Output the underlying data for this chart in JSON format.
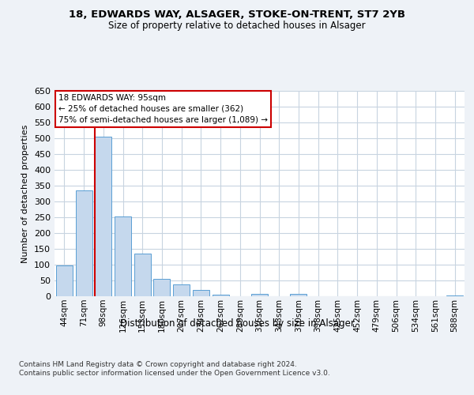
{
  "title_line1": "18, EDWARDS WAY, ALSAGER, STOKE-ON-TRENT, ST7 2YB",
  "title_line2": "Size of property relative to detached houses in Alsager",
  "xlabel": "Distribution of detached houses by size in Alsager",
  "ylabel": "Number of detached properties",
  "categories": [
    "44sqm",
    "71sqm",
    "98sqm",
    "126sqm",
    "153sqm",
    "180sqm",
    "207sqm",
    "234sqm",
    "262sqm",
    "289sqm",
    "316sqm",
    "343sqm",
    "370sqm",
    "398sqm",
    "425sqm",
    "452sqm",
    "479sqm",
    "506sqm",
    "534sqm",
    "561sqm",
    "588sqm"
  ],
  "values": [
    97,
    334,
    505,
    253,
    136,
    54,
    38,
    20,
    6,
    0,
    8,
    0,
    8,
    0,
    0,
    0,
    0,
    0,
    0,
    0,
    3
  ],
  "bar_color": "#c5d8ed",
  "bar_edge_color": "#5a9fd4",
  "vline_x_index": 2,
  "vline_color": "#cc0000",
  "ylim": [
    0,
    650
  ],
  "yticks": [
    0,
    50,
    100,
    150,
    200,
    250,
    300,
    350,
    400,
    450,
    500,
    550,
    600,
    650
  ],
  "annotation_text": "18 EDWARDS WAY: 95sqm\n← 25% of detached houses are smaller (362)\n75% of semi-detached houses are larger (1,089) →",
  "annotation_box_color": "#cc0000",
  "footer_text": "Contains HM Land Registry data © Crown copyright and database right 2024.\nContains public sector information licensed under the Open Government Licence v3.0.",
  "bg_color": "#eef2f7",
  "plot_bg_color": "#ffffff",
  "grid_color": "#c8d4e0"
}
